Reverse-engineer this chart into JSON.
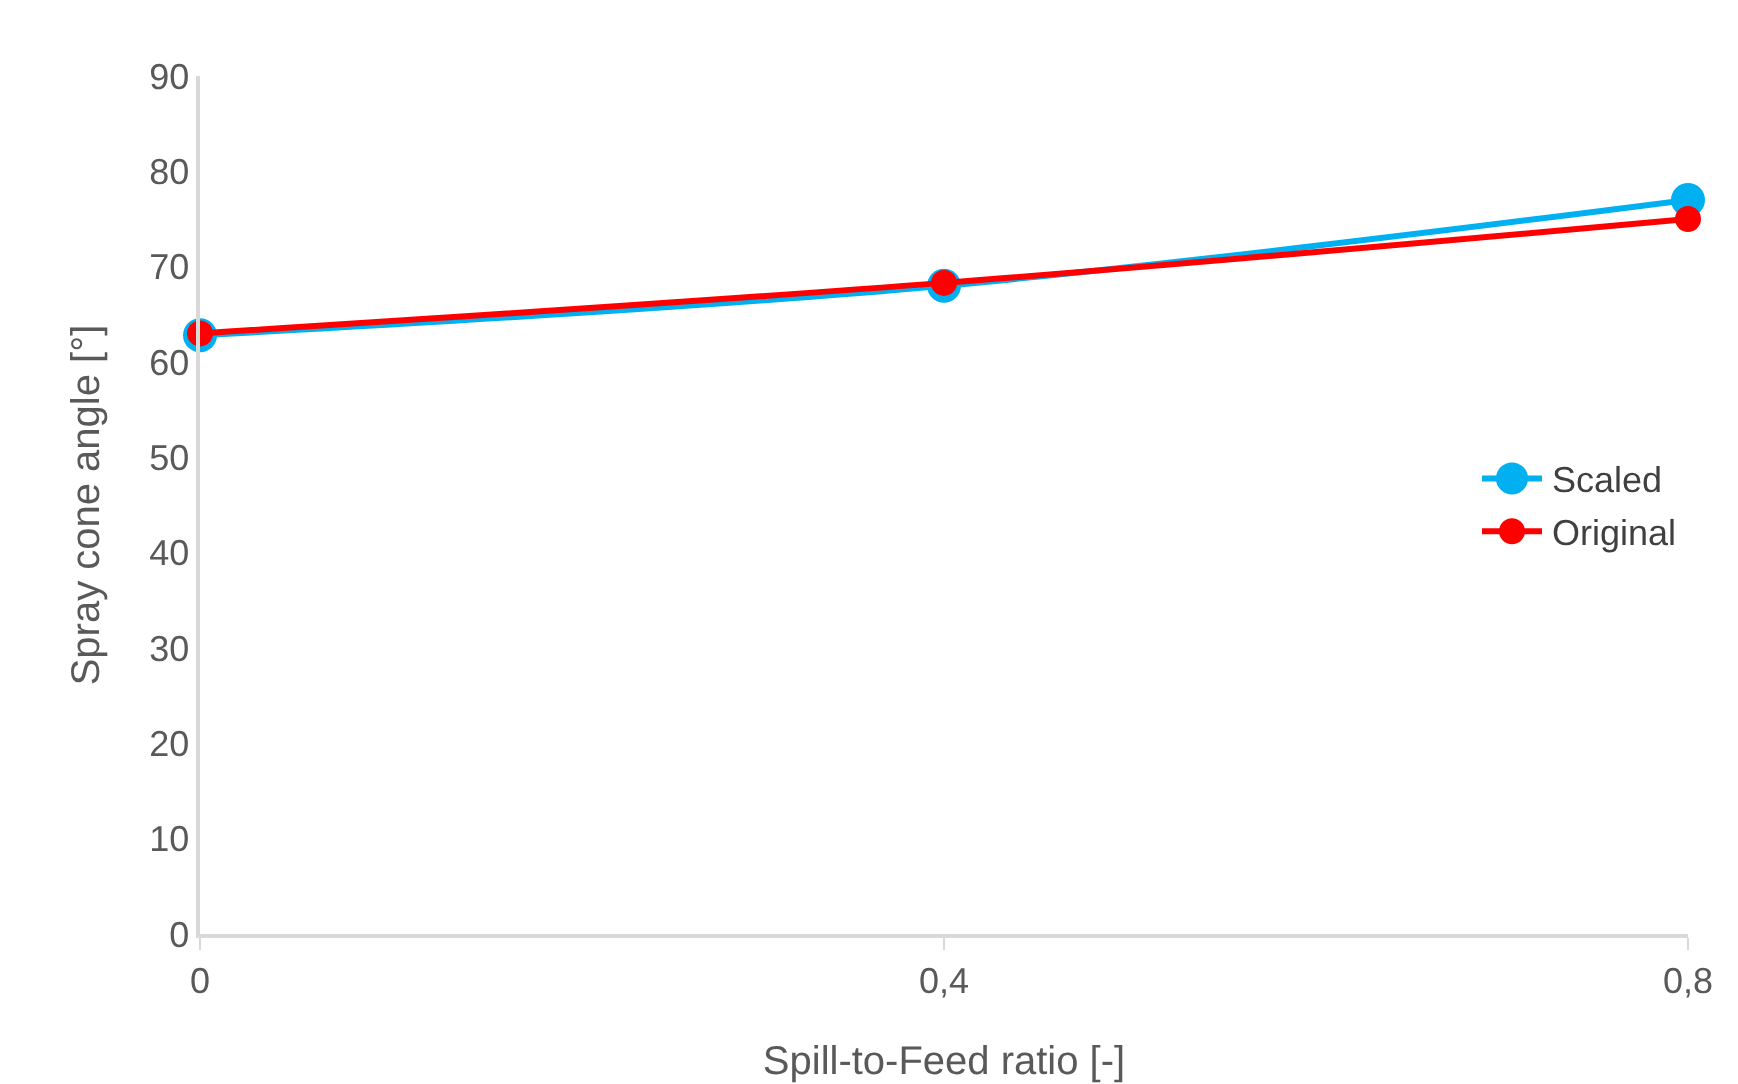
{
  "chart_data": {
    "type": "line",
    "xlabel": "Spill-to-Feed ratio [-]",
    "ylabel": "Spray cone angle [°]",
    "x": [
      0,
      0.4,
      0.8
    ],
    "series": [
      {
        "name": "Scaled",
        "color": "#00b0f0",
        "values": [
          62.8,
          68,
          77
        ]
      },
      {
        "name": "Original",
        "color": "#ff0000",
        "values": [
          63,
          68.3,
          75
        ]
      }
    ],
    "xlim": [
      0,
      0.8
    ],
    "xticks": [
      {
        "value": 0,
        "label": "0"
      },
      {
        "value": 0.4,
        "label": "0,4"
      },
      {
        "value": 0.8,
        "label": "0,8"
      }
    ],
    "ylim": [
      0,
      90
    ],
    "yticks": [
      0,
      10,
      20,
      30,
      40,
      50,
      60,
      70,
      80,
      90
    ],
    "grid": false,
    "legend": "right",
    "marker": "circle",
    "line_style": "solid"
  }
}
